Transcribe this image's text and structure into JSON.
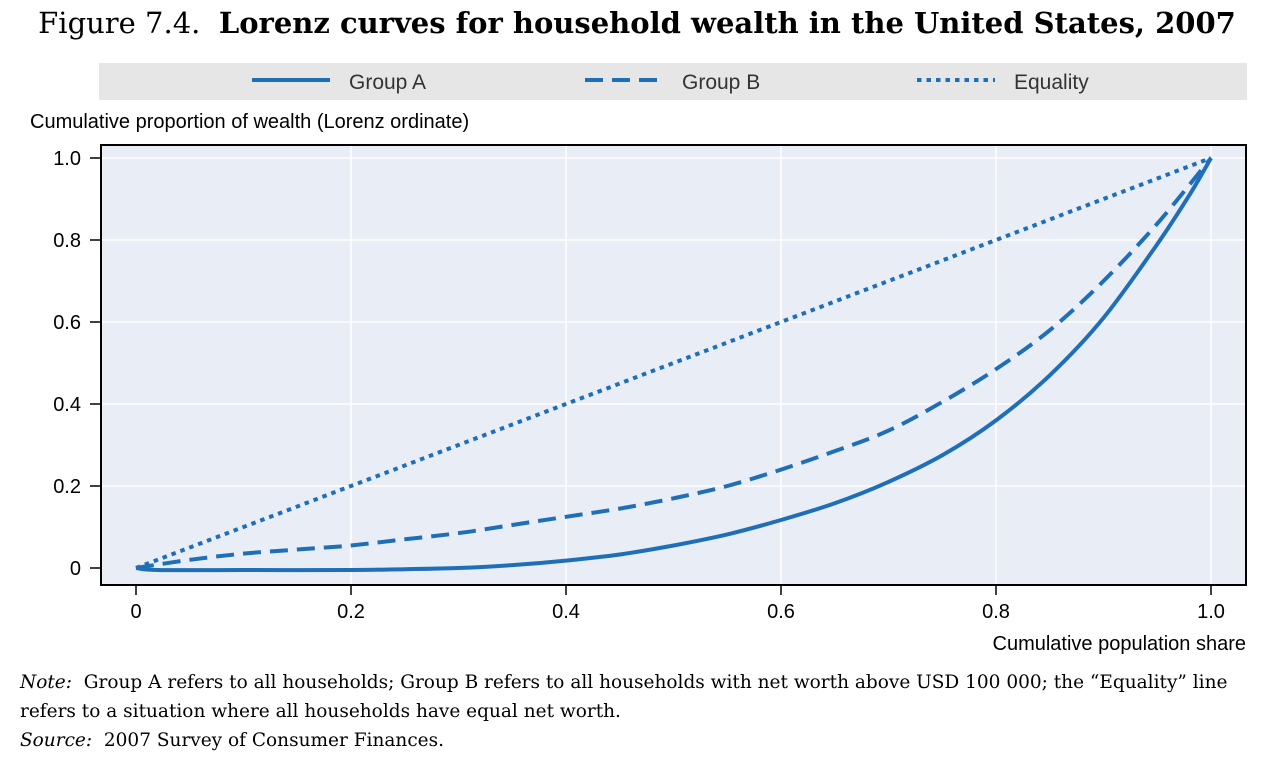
{
  "figure": {
    "number": "Figure 7.4.",
    "title": "Lorenz curves for household wealth in the United States, 2007"
  },
  "notes": {
    "note_label": "Note:",
    "note_text": "Group A refers to all households; Group B refers to all households with net worth above USD 100 000; the “Equality” line refers to a situation where all households have equal net worth.",
    "source_label": "Source:",
    "source_text": "2007 Survey of Consumer Finances."
  },
  "colors": {
    "line": "#1f6fb8",
    "plot_bg": "#e9edf6",
    "legend_bg": "#e6e6e6",
    "grid": "#ffffff",
    "frame": "#000000"
  },
  "chart_data": {
    "type": "line",
    "title": "Lorenz curves for household wealth in the United States, 2007",
    "xlabel": "Cumulative population share",
    "ylabel": "Cumulative proportion of wealth (Lorenz ordinate)",
    "xlim": [
      0,
      1
    ],
    "ylim": [
      0,
      1
    ],
    "xticks": [
      0,
      0.2,
      0.4,
      0.6,
      0.8,
      1.0
    ],
    "xtick_labels": [
      "0",
      "0.2",
      "0.4",
      "0.6",
      "0.8",
      "1.0"
    ],
    "yticks": [
      0,
      0.2,
      0.4,
      0.6,
      0.8,
      1.0
    ],
    "ytick_labels": [
      "0",
      "0.2",
      "0.4",
      "0.6",
      "0.8",
      "1.0"
    ],
    "grid": true,
    "legend_position": "top",
    "series": [
      {
        "name": "Group A",
        "style": "solid",
        "x": [
          0,
          0.02,
          0.1,
          0.2,
          0.25,
          0.3,
          0.35,
          0.4,
          0.45,
          0.5,
          0.55,
          0.6,
          0.65,
          0.7,
          0.75,
          0.8,
          0.85,
          0.9,
          0.95,
          0.98,
          1.0
        ],
        "y": [
          0,
          -0.005,
          -0.005,
          -0.005,
          -0.003,
          0.0,
          0.007,
          0.018,
          0.033,
          0.055,
          0.082,
          0.117,
          0.158,
          0.21,
          0.275,
          0.36,
          0.47,
          0.61,
          0.79,
          0.91,
          1.0
        ]
      },
      {
        "name": "Group B",
        "style": "dashed",
        "x": [
          0,
          0.05,
          0.1,
          0.15,
          0.2,
          0.25,
          0.3,
          0.35,
          0.4,
          0.45,
          0.5,
          0.55,
          0.6,
          0.65,
          0.7,
          0.75,
          0.8,
          0.85,
          0.9,
          0.95,
          1.0
        ],
        "y": [
          0,
          0.02,
          0.035,
          0.045,
          0.055,
          0.07,
          0.085,
          0.105,
          0.125,
          0.145,
          0.17,
          0.2,
          0.24,
          0.285,
          0.335,
          0.405,
          0.485,
          0.58,
          0.7,
          0.84,
          1.0
        ]
      },
      {
        "name": "Equality",
        "style": "dotted",
        "x": [
          0,
          1.0
        ],
        "y": [
          0,
          1.0
        ]
      }
    ]
  }
}
